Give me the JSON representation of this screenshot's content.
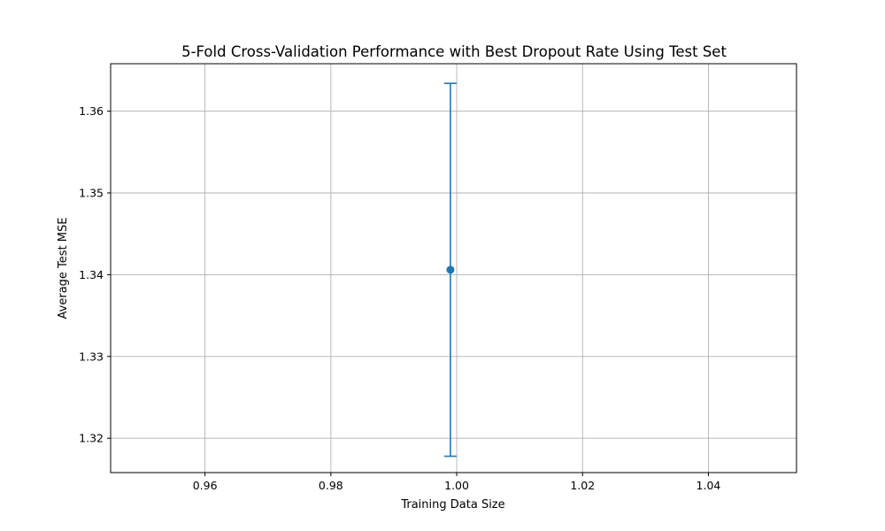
{
  "chart_data": {
    "type": "scatter",
    "title": "5-Fold Cross-Validation Performance with Best Dropout Rate Using Test Set",
    "xlabel": "Training Data Size",
    "ylabel": "Average Test MSE",
    "xlim": [
      0.945,
      1.054
    ],
    "ylim": [
      1.3158,
      1.3658
    ],
    "xticks": [
      0.96,
      0.98,
      1.0,
      1.02,
      1.04
    ],
    "xtick_labels": [
      "0.96",
      "0.98",
      "1.00",
      "1.02",
      "1.04"
    ],
    "yticks": [
      1.32,
      1.33,
      1.34,
      1.35,
      1.36
    ],
    "ytick_labels": [
      "1.32",
      "1.33",
      "1.34",
      "1.35",
      "1.36"
    ],
    "grid": true,
    "color": "#1f77b4",
    "points": [
      {
        "x": 0.999,
        "y": 1.3406,
        "yerr": 0.0228
      }
    ]
  }
}
